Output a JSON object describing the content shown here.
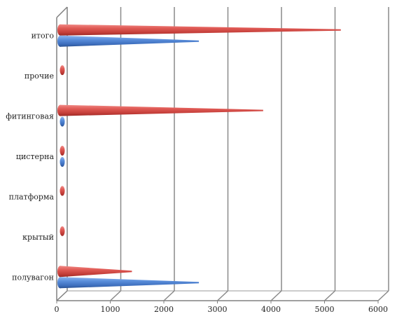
{
  "chart_data": {
    "type": "bar",
    "orientation": "horizontal",
    "style": "3d-cone",
    "categories": [
      "полувагон",
      "крытый",
      "платформа",
      "цистерна",
      "фитинговая",
      "прочие",
      "итого"
    ],
    "series": [
      {
        "color": "#d9534f",
        "values": [
          1300,
          20,
          20,
          20,
          3750,
          20,
          5200
        ]
      },
      {
        "color": "#4a7fd0",
        "values": [
          2550,
          0,
          0,
          20,
          20,
          0,
          2550
        ]
      }
    ],
    "xlim": [
      0,
      6000
    ],
    "xticks": [
      "0",
      "1000",
      "2000",
      "3000",
      "4000",
      "5000",
      "6000"
    ],
    "grid": true,
    "legend": "none"
  }
}
